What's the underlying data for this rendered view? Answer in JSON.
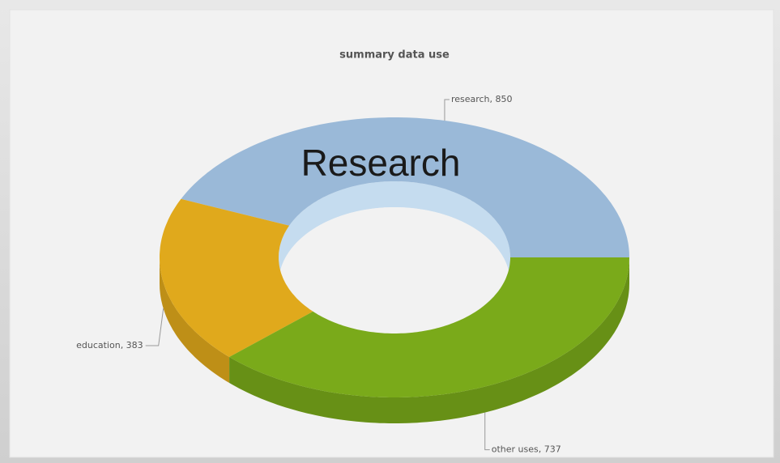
{
  "chart_data": {
    "type": "pie",
    "title": "summary data use",
    "annotation": "Research",
    "values": [
      850,
      383,
      737
    ],
    "value_labels": [
      "research, 850",
      "education, 383",
      "other uses, 737"
    ],
    "colors": [
      "#9ab9d8",
      "#e0a91c",
      "#7aaa1a"
    ],
    "donut": true,
    "start_angle": 0,
    "direction": "counterclockwise"
  }
}
